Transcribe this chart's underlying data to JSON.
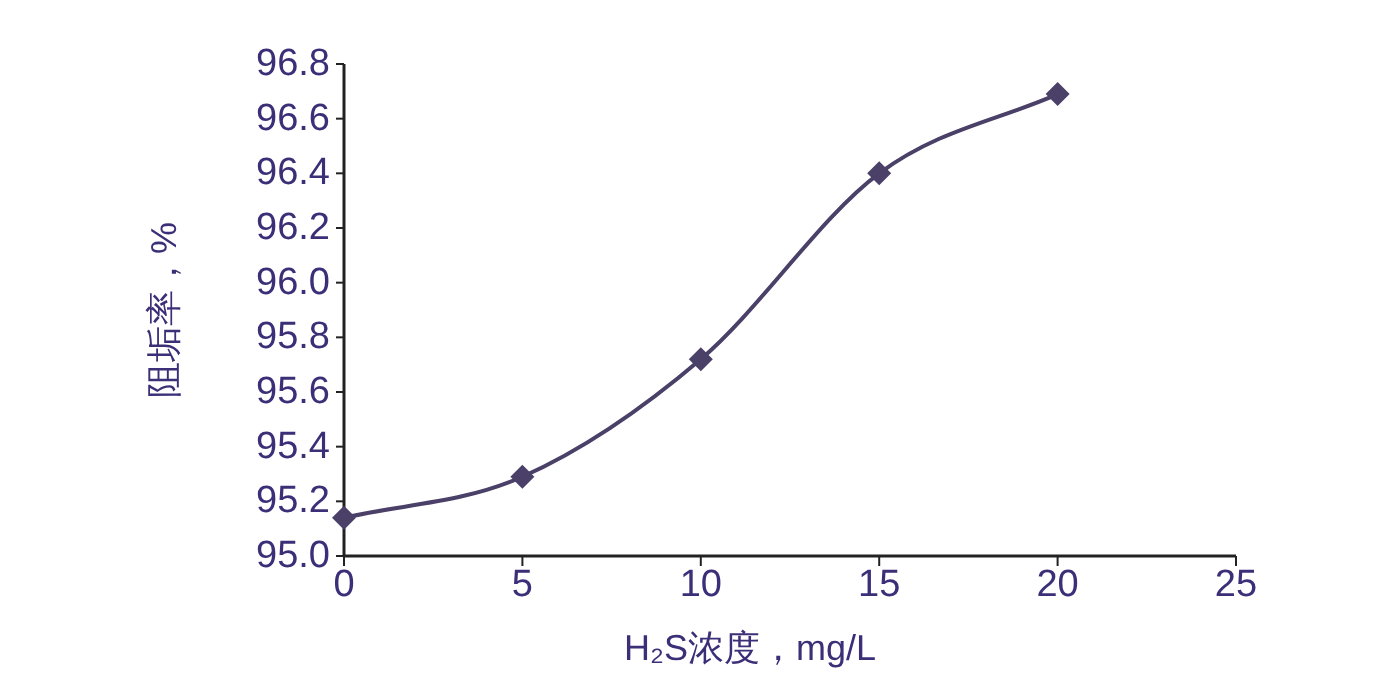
{
  "chart_data": {
    "type": "line",
    "xlabel": "H₂S浓度，mg/L",
    "ylabel": "阻垢率，%",
    "x": [
      0,
      5,
      10,
      15,
      20
    ],
    "series": [
      {
        "color": "#4a4068",
        "values": [
          95.14,
          95.29,
          95.72,
          96.4,
          96.69
        ]
      }
    ],
    "xlim": [
      0,
      25
    ],
    "xticks": [
      0,
      5,
      10,
      15,
      20,
      25
    ],
    "ylim": [
      95.0,
      96.8
    ],
    "yticks": [
      {
        "value": 95.0,
        "label": "95.0"
      },
      95.2,
      95.4,
      95.6,
      95.8,
      {
        "value": 96.0,
        "label": "96.0"
      },
      96.2,
      96.4,
      96.6,
      96.8
    ],
    "marker": "diamond",
    "line_style": "solid",
    "grid": false
  }
}
